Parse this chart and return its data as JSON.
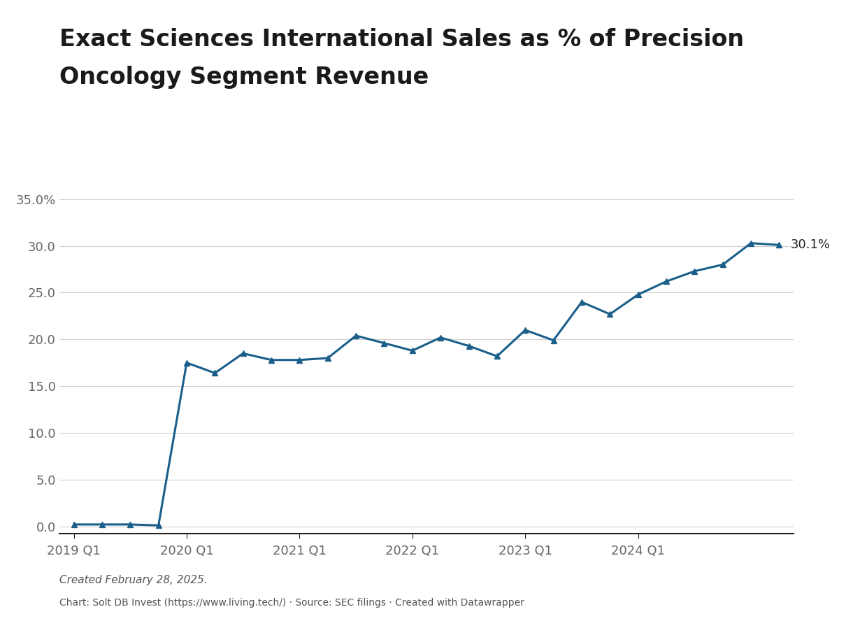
{
  "title_line1": "Exact Sciences International Sales as % of Precision",
  "title_line2": "Oncology Segment Revenue",
  "values": [
    0.2,
    0.2,
    0.2,
    0.1,
    17.5,
    16.4,
    18.5,
    17.8,
    17.8,
    18.0,
    20.4,
    19.6,
    18.8,
    20.2,
    19.3,
    18.2,
    21.0,
    19.9,
    24.0,
    22.7,
    24.8,
    26.2,
    27.3,
    28.0,
    30.3,
    30.1
  ],
  "line_color": "#1a5e8a",
  "marker_style": "^",
  "marker_size": 6,
  "line_width": 2.2,
  "yticks": [
    0.0,
    5.0,
    10.0,
    15.0,
    20.0,
    25.0,
    30.0,
    35.0
  ],
  "ytick_labels": [
    "0.0",
    "5.0",
    "10.0",
    "15.0",
    "20.0",
    "25.0",
    "30.0",
    "35.0%"
  ],
  "ylim": [
    -0.8,
    37.5
  ],
  "xtick_positions": [
    0,
    4,
    8,
    12,
    16,
    20
  ],
  "xtick_labels": [
    "2019 Q1",
    "2020 Q1",
    "2021 Q1",
    "2022 Q1",
    "2023 Q1",
    "2024 Q1"
  ],
  "last_label": "30.1%",
  "footnote_italic": "Created February 28, 2025.",
  "footnote_regular": "Chart: Solt DB Invest (https://www.living.tech/) · Source: SEC filings · Created with Datawrapper",
  "background_color": "#ffffff",
  "grid_color": "#d0d0d0",
  "title_fontsize": 24,
  "tick_fontsize": 13,
  "annotation_fontsize": 13
}
